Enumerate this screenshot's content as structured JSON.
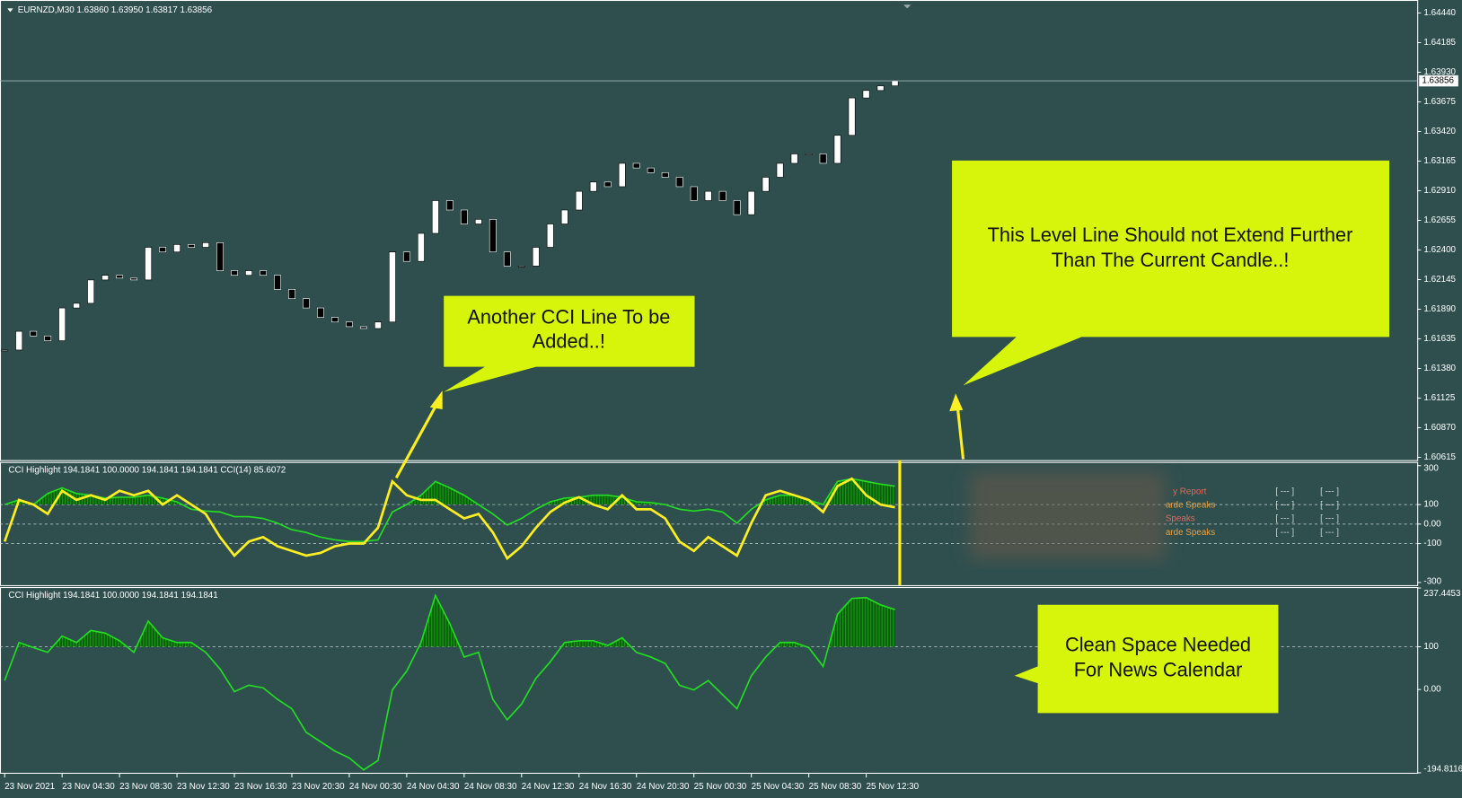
{
  "header": {
    "symbol_line": "EURNZD,M30  1.63860 1.63950 1.63817 1.63856"
  },
  "main_chart": {
    "type": "candlestick",
    "categories": [
      "23 Nov 2021",
      null,
      null,
      null,
      "23 Nov 04:30",
      null,
      null,
      null,
      "23 Nov 08:30",
      null,
      null,
      null,
      "23 Nov 12:30",
      null,
      null,
      null,
      "23 Nov 16:30",
      null,
      null,
      null,
      "23 Nov 20:30",
      null,
      null,
      null,
      "24 Nov 00:30",
      null,
      null,
      null,
      "24 Nov 04:30",
      null,
      null,
      null,
      "24 Nov 08:30",
      null,
      null,
      null,
      "24 Nov 12:30",
      null,
      null,
      null,
      "24 Nov 16:30",
      null,
      null,
      null,
      "24 Nov 20:30",
      null,
      null,
      null,
      "25 Nov 00:30",
      null,
      null,
      null,
      "25 Nov 04:30",
      null,
      null,
      null,
      "25 Nov 08:30",
      null,
      null,
      null,
      "25 Nov 12:30",
      null,
      null
    ],
    "close": [
      1.61539,
      1.617,
      1.6166,
      1.61619,
      1.61901,
      1.61941,
      1.62142,
      1.62182,
      1.62158,
      1.62142,
      1.62423,
      1.62383,
      1.62447,
      1.62423,
      1.62463,
      1.62222,
      1.62182,
      1.62222,
      1.62182,
      1.62061,
      1.61981,
      1.61901,
      1.6182,
      1.6178,
      1.6174,
      1.61724,
      1.6178,
      1.62383,
      1.62302,
      1.62543,
      1.62825,
      1.62744,
      1.62624,
      1.62664,
      1.62383,
      1.62262,
      1.62262,
      1.62423,
      1.62624,
      1.62744,
      1.62905,
      1.62985,
      1.62945,
      1.63146,
      1.63106,
      1.63066,
      1.63026,
      1.62945,
      1.62825,
      1.62905,
      1.62825,
      1.62704,
      1.62905,
      1.63026,
      1.63146,
      1.63227,
      1.63227,
      1.63146,
      1.63387,
      1.63709,
      1.63773,
      1.63813,
      1.63856
    ],
    "ylim": [
      1.60591,
      1.64552
    ],
    "yticks": [
      {
        "value": 1.6444,
        "label": "1.64440"
      },
      1.64185,
      {
        "value": 1.6393,
        "label": "1.63930"
      },
      1.63675,
      {
        "value": 1.6342,
        "label": "1.63420"
      },
      1.63165,
      {
        "value": 1.6291,
        "label": "1.62910"
      },
      1.62655,
      {
        "value": 1.624,
        "label": "1.62400"
      },
      1.62145,
      {
        "value": 1.6189,
        "label": "1.61890"
      },
      1.61635,
      {
        "value": 1.6138,
        "label": "1.61380"
      },
      1.61125,
      {
        "value": 1.6087,
        "label": "1.60870"
      },
      1.60615
    ],
    "current_price": 1.63856,
    "up_color": "#ffffff",
    "down_color": "#000000"
  },
  "cci_panel": {
    "label": "CCI Highlight 194.1841 100.0000 194.1841 194.1841   CCI(14) 85.6072",
    "ylim": [
      -314,
      314
    ],
    "yticks": [
      300,
      100,
      {
        "value": 0,
        "label": "0.00"
      },
      -100,
      -300
    ],
    "levels": [
      100,
      0,
      -100
    ],
    "highlight_above": 100,
    "series": [
      {
        "color": "#22dd22",
        "values": [
          100,
          124,
          100,
          157,
          186,
          157,
          148,
          133,
          138,
          138,
          148,
          133,
          114,
          76,
          67,
          62,
          38,
          38,
          29,
          5,
          -29,
          -43,
          -67,
          -81,
          -90,
          -90,
          -81,
          62,
          100,
          148,
          219,
          186,
          148,
          100,
          52,
          -5,
          29,
          76,
          114,
          133,
          138,
          148,
          148,
          138,
          114,
          110,
          100,
          76,
          67,
          76,
          62,
          5,
          76,
          124,
          148,
          148,
          124,
          100,
          219,
          233,
          219,
          205,
          195
        ]
      },
      {
        "color": "#ffee22",
        "values": [
          -90,
          124,
          100,
          52,
          171,
          124,
          148,
          124,
          171,
          148,
          171,
          100,
          148,
          100,
          52,
          -67,
          -162,
          -90,
          -67,
          -114,
          -138,
          -162,
          -148,
          -114,
          -100,
          -100,
          -19,
          219,
          148,
          124,
          124,
          76,
          29,
          52,
          -43,
          -176,
          -114,
          -19,
          62,
          110,
          138,
          100,
          76,
          148,
          76,
          76,
          29,
          -90,
          -138,
          -67,
          -114,
          -162,
          5,
          148,
          171,
          148,
          124,
          62,
          195,
          233,
          148,
          100,
          86
        ]
      }
    ]
  },
  "cci_panel2": {
    "label": "CCI Highlight 194.1841 100.0000 194.1841 194.1841",
    "ylim": [
      -194.8116,
      237.4453
    ],
    "yticks": [
      237.4453,
      100,
      {
        "value": 0,
        "label": "0.00"
      },
      -194.8116
    ],
    "levels": [
      100
    ],
    "highlight_above": 100,
    "series": [
      {
        "color": "#22dd22",
        "values": [
          21,
          110,
          98,
          87,
          125,
          110,
          138,
          132,
          114,
          87,
          160,
          121,
          110,
          110,
          87,
          48,
          -5,
          10,
          4,
          -23,
          -45,
          -100,
          -122,
          -144,
          -160,
          -188,
          -166,
          -1,
          43,
          110,
          220,
          154,
          76,
          87,
          -23,
          -71,
          -34,
          26,
          65,
          110,
          114,
          114,
          103,
          121,
          87,
          76,
          61,
          10,
          -1,
          21,
          -12,
          -45,
          32,
          76,
          110,
          110,
          98,
          54,
          176,
          213,
          215,
          198,
          187
        ]
      }
    ]
  },
  "news": {
    "rows": [
      {
        "title": "y Report",
        "col1": "[ --- ]",
        "col2": "[ --- ]",
        "color": "#e06a5a"
      },
      {
        "title": "arde Speaks",
        "col1": "[ --- ]",
        "col2": "[ --- ]",
        "color": "#e8a040"
      },
      {
        "title": "Speaks",
        "col1": "[ --- ]",
        "col2": "[ --- ]",
        "color": "#e06a5a"
      },
      {
        "title": "arde Speaks",
        "col1": "[ --- ]",
        "col2": "[ --- ]",
        "color": "#e8a040"
      }
    ]
  },
  "callouts": [
    {
      "lines": [
        "Another CCI Line To be",
        "Added..!"
      ]
    },
    {
      "lines": [
        "This Level Line Should not Extend Further",
        "Than The Current Candle..!"
      ]
    },
    {
      "lines": [
        "Clean Space Needed",
        "For News Calendar"
      ]
    }
  ]
}
